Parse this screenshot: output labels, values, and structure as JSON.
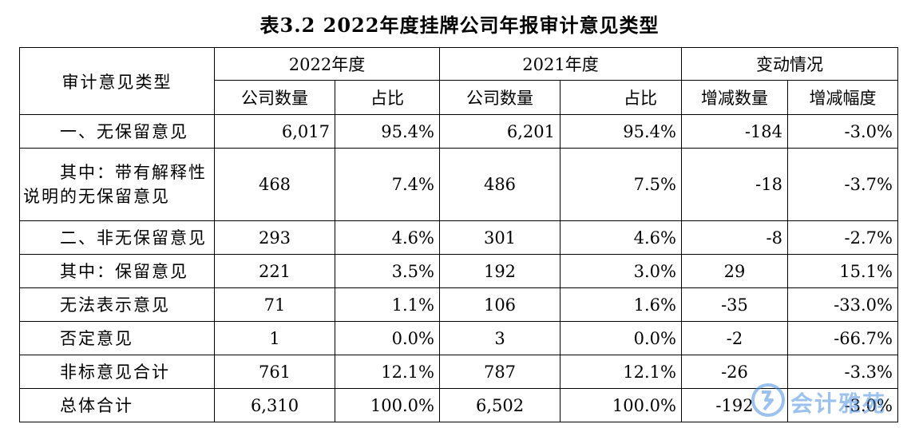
{
  "title": "表3.2  2022年度挂牌公司年报审计意见类型",
  "header": {
    "type_col": "审计意见类型",
    "group_2022": "2022年度",
    "group_2021": "2021年度",
    "group_change": "变动情况",
    "count": "公司数量",
    "ratio": "占比",
    "change_count": "增减数量",
    "change_rate": "增减幅度"
  },
  "rows": [
    {
      "label": "一、无保留意见",
      "c22": "6,017",
      "p22": "95.4%",
      "c21": "6,201",
      "p21": "95.4%",
      "dc": "-184",
      "dr": "-3.0%"
    },
    {
      "label_line1": "其中：带有解释性",
      "label_line2": "说明的无保留意见",
      "c22": "468",
      "p22": "7.4%",
      "c21": "486",
      "p21": "7.5%",
      "dc": "-18",
      "dr": "-3.7%"
    },
    {
      "label": "二、非无保留意见",
      "c22": "293",
      "p22": "4.6%",
      "c21": "301",
      "p21": "4.6%",
      "dc": "-8",
      "dr": "-2.7%"
    },
    {
      "label": "其中：保留意见",
      "c22": "221",
      "p22": "3.5%",
      "c21": "192",
      "p21": "3.0%",
      "dc": "29",
      "dr": "15.1%"
    },
    {
      "label": "无法表示意见",
      "c22": "71",
      "p22": "1.1%",
      "c21": "106",
      "p21": "1.6%",
      "dc": "-35",
      "dr": "-33.0%"
    },
    {
      "label": "否定意见",
      "c22": "1",
      "p22": "0.0%",
      "c21": "3",
      "p21": "0.0%",
      "dc": "-2",
      "dr": "-66.7%"
    },
    {
      "label": "非标意见合计",
      "c22": "761",
      "p22": "12.1%",
      "c21": "787",
      "p21": "12.1%",
      "dc": "-26",
      "dr": "-3.3%"
    },
    {
      "label": "总体合计",
      "c22": "6,310",
      "p22": "100.0%",
      "c21": "6,502",
      "p21": "100.0%",
      "dc": "-192",
      "dr": "-3.0%"
    }
  ],
  "watermark": {
    "text": "会计雅苑",
    "color": "#4a90e2"
  }
}
